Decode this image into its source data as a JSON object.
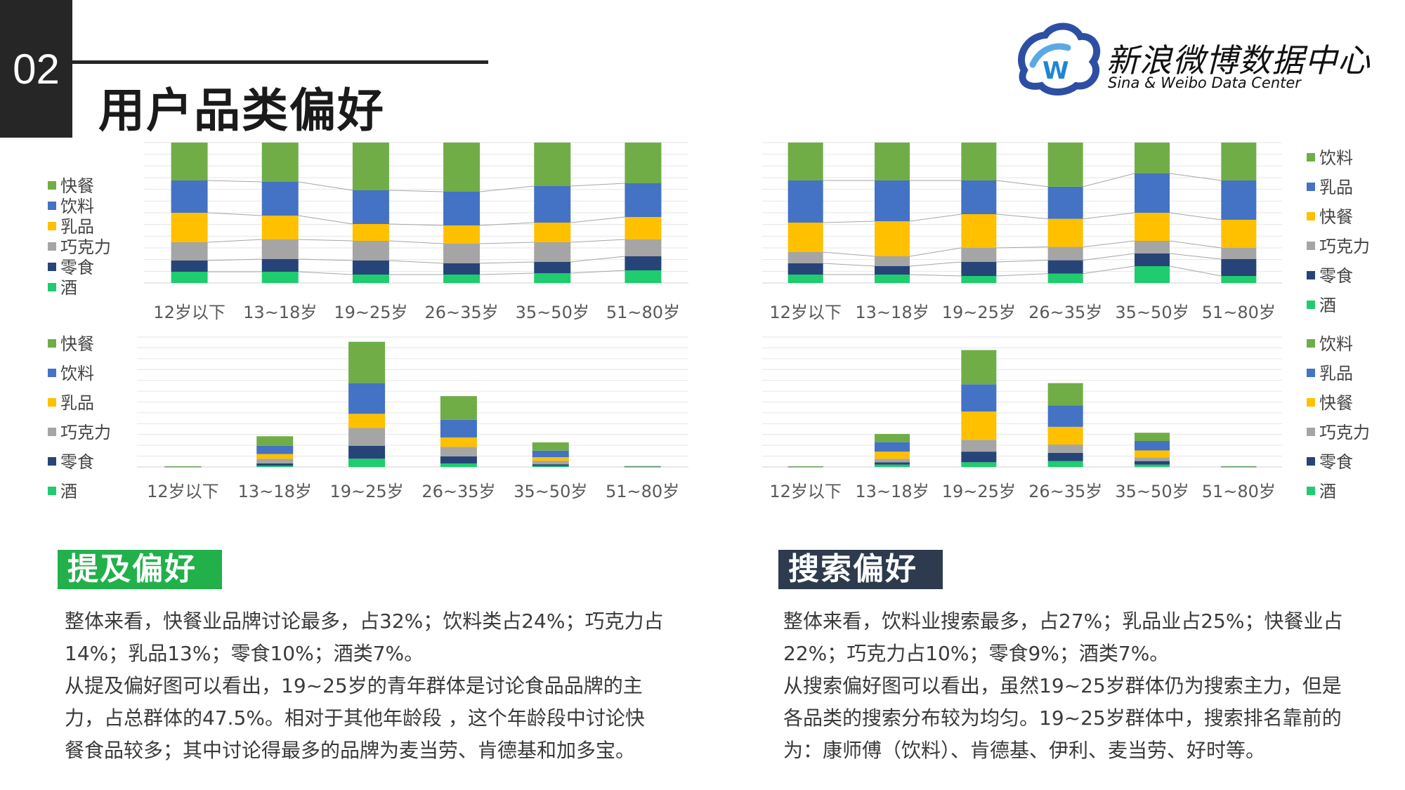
{
  "header": {
    "section_number": "02",
    "title": "用户品类偏好"
  },
  "logo": {
    "name_cn": "新浪微博数据中心",
    "name_en": "Sina & Weibo Data Center"
  },
  "colors": {
    "green": "#70ad47",
    "blue": "#4472c4",
    "yellow": "#ffc000",
    "gray": "#a5a5a5",
    "navy": "#264478",
    "teal": "#1fcc6e",
    "tag_green": "#22b04b",
    "tag_dark": "#2e3b4e"
  },
  "chart_data": [
    {
      "type": "bar",
      "stacked": "100%",
      "categories": [
        "12岁以下",
        "13~18岁",
        "19~25岁",
        "26~35岁",
        "35~50岁",
        "51~80岁"
      ],
      "legend": [
        "快餐",
        "饮料",
        "乳品",
        "巧克力",
        "零食",
        "酒"
      ],
      "legend_position": "left",
      "series_bottom_to_top": [
        {
          "name": "酒",
          "color": "#1fcc6e",
          "values": [
            8,
            8,
            6,
            6,
            7,
            9
          ]
        },
        {
          "name": "零食",
          "color": "#264478",
          "values": [
            8,
            9,
            10,
            8,
            8,
            10
          ]
        },
        {
          "name": "巧克力",
          "color": "#a5a5a5",
          "values": [
            13,
            14,
            14,
            14,
            14,
            12
          ]
        },
        {
          "name": "乳品",
          "color": "#ffc000",
          "values": [
            21,
            17,
            12,
            13,
            14,
            16
          ]
        },
        {
          "name": "饮料",
          "color": "#4472c4",
          "values": [
            23,
            24,
            24,
            24,
            26,
            24
          ]
        },
        {
          "name": "快餐",
          "color": "#70ad47",
          "values": [
            27,
            28,
            34,
            35,
            31,
            29
          ]
        }
      ],
      "ylim": [
        0,
        100
      ],
      "grid": true
    },
    {
      "type": "bar",
      "stacked": "100%",
      "categories": [
        "12岁以下",
        "13~18岁",
        "19~25岁",
        "26~35岁",
        "35~50岁",
        "51~80岁"
      ],
      "legend": [
        "饮料",
        "乳品",
        "快餐",
        "巧克力",
        "零食",
        "酒"
      ],
      "legend_position": "right",
      "series_bottom_to_top": [
        {
          "name": "酒",
          "color": "#1fcc6e",
          "values": [
            6,
            6,
            5,
            7,
            12,
            5
          ]
        },
        {
          "name": "零食",
          "color": "#264478",
          "values": [
            8,
            6,
            10,
            10,
            9,
            12
          ]
        },
        {
          "name": "巧克力",
          "color": "#a5a5a5",
          "values": [
            8,
            7,
            10,
            10,
            9,
            8
          ]
        },
        {
          "name": "快餐",
          "color": "#ffc000",
          "values": [
            21,
            25,
            24,
            21,
            20,
            20
          ]
        },
        {
          "name": "乳品",
          "color": "#4472c4",
          "values": [
            30,
            29,
            24,
            24,
            28,
            28
          ]
        },
        {
          "name": "饮料",
          "color": "#70ad47",
          "values": [
            27,
            27,
            27,
            33,
            22,
            27
          ]
        }
      ],
      "ylim": [
        0,
        100
      ],
      "grid": true
    },
    {
      "type": "bar",
      "stacked": true,
      "categories": [
        "12岁以下",
        "13~18岁",
        "19~25岁",
        "26~35岁",
        "35~50岁",
        "51~80岁"
      ],
      "legend": [
        "快餐",
        "饮料",
        "乳品",
        "巧克力",
        "零食",
        "酒"
      ],
      "legend_position": "left",
      "series_bottom_to_top": [
        {
          "name": "酒",
          "color": "#1fcc6e",
          "values": [
            0.1,
            1,
            7,
            3,
            0.8,
            0.1
          ]
        },
        {
          "name": "零食",
          "color": "#264478",
          "values": [
            0.1,
            2,
            11,
            6,
            1.5,
            0.1
          ]
        },
        {
          "name": "巧克力",
          "color": "#a5a5a5",
          "values": [
            0.1,
            4,
            15,
            8,
            3,
            0.1
          ]
        },
        {
          "name": "乳品",
          "color": "#ffc000",
          "values": [
            0.1,
            4,
            12,
            8,
            3,
            0.1
          ]
        },
        {
          "name": "饮料",
          "color": "#4472c4",
          "values": [
            0.1,
            7,
            26,
            15,
            5.5,
            0.1
          ]
        },
        {
          "name": "快餐",
          "color": "#70ad47",
          "values": [
            0.1,
            8,
            35,
            20,
            7,
            0.3
          ]
        }
      ],
      "ylim": [
        0,
        110
      ],
      "grid": true
    },
    {
      "type": "bar",
      "stacked": true,
      "categories": [
        "12岁以下",
        "13~18岁",
        "19~25岁",
        "26~35岁",
        "35~50岁",
        "51~80岁"
      ],
      "legend": [
        "饮料",
        "乳品",
        "快餐",
        "巧克力",
        "零食",
        "酒"
      ],
      "legend_position": "right",
      "series_bottom_to_top": [
        {
          "name": "酒",
          "color": "#1fcc6e",
          "values": [
            0.1,
            2,
            4,
            5,
            2,
            0.1
          ]
        },
        {
          "name": "零食",
          "color": "#264478",
          "values": [
            0.1,
            2,
            9,
            7,
            3,
            0.1
          ]
        },
        {
          "name": "巧克力",
          "color": "#a5a5a5",
          "values": [
            0.1,
            3,
            10,
            7,
            3,
            0.1
          ]
        },
        {
          "name": "快餐",
          "color": "#ffc000",
          "values": [
            0.1,
            6,
            24,
            15,
            6,
            0.1
          ]
        },
        {
          "name": "乳品",
          "color": "#4472c4",
          "values": [
            0.1,
            8,
            23,
            18,
            8,
            0.1
          ]
        },
        {
          "name": "饮料",
          "color": "#70ad47",
          "values": [
            0.1,
            7,
            29,
            19,
            7,
            0.2
          ]
        }
      ],
      "ylim": [
        0,
        110
      ],
      "grid": true
    }
  ],
  "sections": {
    "mention": {
      "tag": "提及偏好",
      "lines": [
        "整体来看，快餐业品牌讨论最多，占32%；饮料类占24%；巧克力占",
        "14%；乳品13%；零食10%；酒类7%。",
        "从提及偏好图可以看出，19~25岁的青年群体是讨论食品品牌的主",
        "力，占总群体的47.5%。相对于其他年龄段 ，这个年龄段中讨论快",
        "餐食品较多；其中讨论得最多的品牌为麦当劳、肯德基和加多宝。"
      ]
    },
    "search": {
      "tag": "搜索偏好",
      "lines": [
        "整体来看，饮料业搜索最多，占27%；乳品业占25%；快餐业占",
        "22%；巧克力占10%；零食9%；酒类7%。",
        "从搜索偏好图可以看出，虽然19~25岁群体仍为搜索主力，但是",
        "各品类的搜索分布较为均匀。19~25岁群体中，搜索排名靠前的",
        "为：康师傅（饮料）、肯德基、伊利、麦当劳、好时等。"
      ]
    }
  }
}
